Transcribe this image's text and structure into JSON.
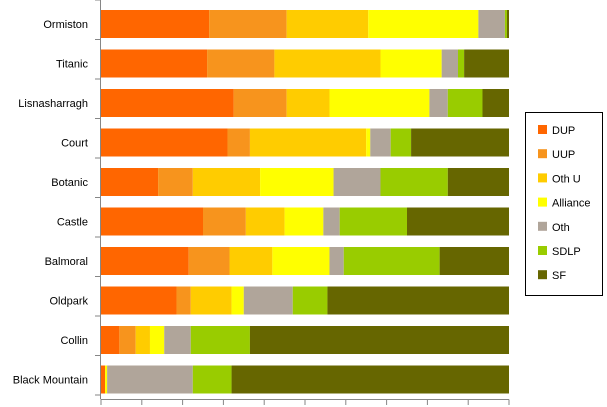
{
  "chart_data": {
    "type": "bar",
    "orientation": "horizontal",
    "stacked": "percent",
    "title": "",
    "xlabel": "",
    "ylabel": "",
    "xlim": [
      0,
      100
    ],
    "grid": false,
    "legend_position": "right",
    "categories": [
      "Ormiston",
      "Titanic",
      "Lisnasharragh",
      "Court",
      "Botanic",
      "Castle",
      "Balmoral",
      "Oldpark",
      "Collin",
      "Black Mountain"
    ],
    "series": [
      {
        "name": "DUP",
        "color": "#FF6600",
        "values": [
          26.5,
          26.0,
          32.5,
          31.0,
          14.0,
          25.0,
          21.5,
          18.5,
          4.5,
          1.0
        ]
      },
      {
        "name": "UUP",
        "color": "#F7941D",
        "values": [
          19.0,
          16.5,
          13.0,
          5.5,
          8.5,
          10.5,
          10.0,
          3.5,
          4.0,
          0.0
        ]
      },
      {
        "name": "Oth U",
        "color": "#FFCC00",
        "values": [
          20.0,
          26.0,
          10.5,
          28.5,
          16.5,
          9.5,
          10.5,
          10.0,
          3.5,
          0.0
        ]
      },
      {
        "name": "Alliance",
        "color": "#FFFF00",
        "values": [
          27.0,
          15.0,
          24.5,
          1.0,
          18.0,
          9.5,
          14.0,
          3.0,
          3.5,
          0.5
        ]
      },
      {
        "name": "Oth",
        "color": "#B0A59A",
        "values": [
          6.5,
          4.0,
          4.5,
          5.0,
          11.5,
          4.0,
          3.5,
          12.0,
          6.5,
          21.0
        ]
      },
      {
        "name": "SDLP",
        "color": "#99CC00",
        "values": [
          0.5,
          1.5,
          8.5,
          5.0,
          16.5,
          16.5,
          23.5,
          8.5,
          14.5,
          9.5
        ]
      },
      {
        "name": "SF",
        "color": "#666600",
        "values": [
          0.5,
          11.0,
          6.5,
          24.0,
          15.0,
          25.0,
          17.0,
          44.5,
          63.5,
          68.0
        ]
      }
    ]
  }
}
